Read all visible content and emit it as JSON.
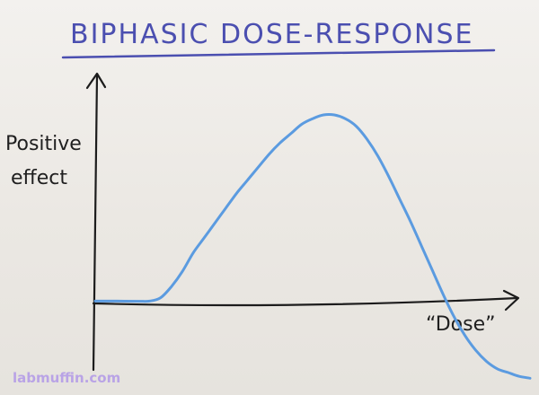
{
  "chart_data": {
    "type": "line",
    "title": "BIPHASIC DOSE-RESPONSE",
    "ylabel_line1": "Positive",
    "ylabel_line2": "effect",
    "xlabel": "“Dose”",
    "x": [
      0,
      5,
      10,
      12.5,
      15,
      17.5,
      20,
      22.5,
      25,
      27.5,
      30,
      32.5,
      35,
      37.5,
      40,
      42.5,
      45,
      47.5,
      50,
      52.5,
      55,
      57.5,
      60,
      62.5,
      65,
      67.5,
      70,
      72.5,
      75,
      77.5,
      80,
      82.5,
      85,
      87.5,
      90,
      92.5,
      95,
      97.5,
      100
    ],
    "y": [
      0.3,
      0.3,
      0.2,
      0.3,
      2,
      8,
      16,
      26,
      34,
      42,
      50,
      58,
      65,
      72,
      79,
      85,
      90,
      95,
      98,
      100,
      100,
      98,
      94,
      87,
      78,
      67,
      55,
      43,
      30,
      17,
      4,
      -8,
      -18,
      -26,
      -32,
      -36,
      -38,
      -40,
      -41
    ],
    "xlim": [
      0,
      100
    ],
    "ylim": [
      -45,
      115
    ],
    "series": [
      {
        "color": "#5b9be0"
      }
    ]
  },
  "watermark": "labmuffin.com",
  "colors": {
    "ink": "#1c1c1c",
    "title": "#4b4fb0",
    "curve": "#5b9be0",
    "watermark": "#b9a3e6"
  }
}
